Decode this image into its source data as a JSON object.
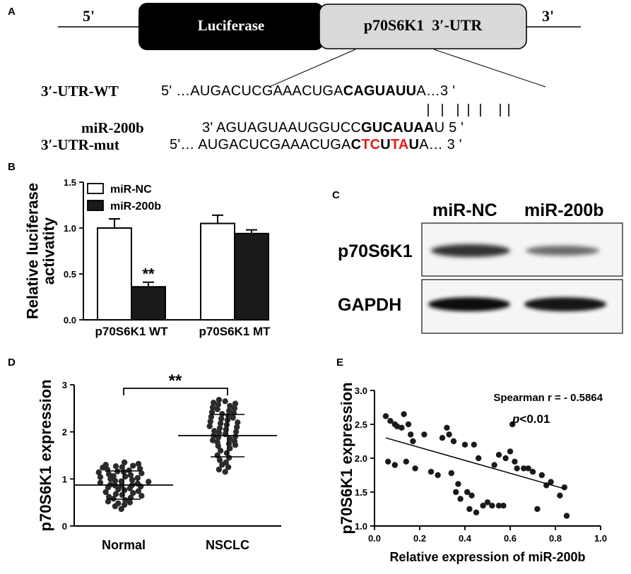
{
  "panels": {
    "a": "A",
    "b": "B",
    "c": "C",
    "d": "D",
    "e": "E"
  },
  "panel_a": {
    "five_prime": "5'",
    "three_prime": "3'",
    "box1": "Luciferase",
    "box2": "p70S6K1  3′-UTR",
    "wt": {
      "label": "3′-UTR-WT",
      "p5": "5'",
      "pre": "…AUGACUCGAAACUGA",
      "bold": "CAGUAUU",
      "post": "A…3 '"
    },
    "mir": {
      "label": "miR-200b",
      "p3": "3'",
      "pre": "AGUAGUAAUGGUCC",
      "bold": "GUCAUAA",
      "post": "U 5 '"
    },
    "mut": {
      "label": "3′-UTR-mut",
      "p5": "5'",
      "pre": "… AUGACUCGAAACUGA",
      "s1": "C",
      "r1": "TC",
      "s2": "U",
      "r2": "TA",
      "s3": "U",
      "post": "A… 3 '"
    }
  },
  "chart_data": [
    {
      "panel": "B",
      "type": "bar",
      "ylabel": "Relative luciferase activatity",
      "ylim": [
        0,
        1.5
      ],
      "yticks": [
        "0.0",
        "0.5",
        "1.0",
        "1.5"
      ],
      "categories": [
        "p70S6K1 WT",
        "p70S6K1 MT"
      ],
      "series": [
        {
          "name": "miR-NC",
          "values": [
            1.0,
            1.05
          ],
          "errors": [
            0.1,
            0.09
          ],
          "color": "#ffffff"
        },
        {
          "name": "miR-200b",
          "values": [
            0.36,
            0.94
          ],
          "errors": [
            0.05,
            0.04
          ],
          "color": "#1a1a1a"
        }
      ],
      "annotations": [
        "**"
      ],
      "legend": "top-left"
    },
    {
      "panel": "D",
      "type": "scatter",
      "ylabel": "p70S6K1 expression",
      "ylim": [
        0,
        3
      ],
      "yticks": [
        "0",
        "1",
        "2",
        "3"
      ],
      "categories": [
        "Normal",
        "NSCLC"
      ],
      "means": [
        0.87,
        1.92
      ],
      "sds": [
        0.3,
        0.45
      ],
      "annotations": [
        "**"
      ],
      "groups": [
        [
          0.36,
          0.42,
          0.45,
          0.48,
          0.5,
          0.52,
          0.55,
          0.58,
          0.6,
          0.62,
          0.64,
          0.66,
          0.68,
          0.7,
          0.72,
          0.74,
          0.76,
          0.78,
          0.8,
          0.82,
          0.84,
          0.85,
          0.86,
          0.87,
          0.88,
          0.9,
          0.92,
          0.94,
          0.95,
          0.96,
          0.98,
          1.0,
          1.02,
          1.04,
          1.05,
          1.06,
          1.08,
          1.1,
          1.12,
          1.14,
          1.15,
          1.16,
          1.18,
          1.2,
          1.22,
          1.24,
          1.25,
          1.27,
          1.28,
          1.3,
          1.32,
          1.35
        ],
        [
          1.15,
          1.2,
          1.25,
          1.3,
          1.35,
          1.4,
          1.45,
          1.5,
          1.55,
          1.6,
          1.65,
          1.7,
          1.72,
          1.75,
          1.78,
          1.8,
          1.82,
          1.85,
          1.88,
          1.9,
          1.92,
          1.95,
          1.98,
          2.0,
          2.02,
          2.05,
          2.08,
          2.1,
          2.12,
          2.15,
          2.18,
          2.2,
          2.22,
          2.25,
          2.28,
          2.3,
          2.32,
          2.35,
          2.38,
          2.4,
          2.42,
          2.45,
          2.48,
          2.5,
          2.52,
          2.55,
          2.58,
          2.6,
          2.62,
          2.65,
          2.68
        ]
      ]
    },
    {
      "panel": "E",
      "type": "scatter",
      "xlabel": "Relative expression of miR-200b",
      "ylabel": "p70S6K1 expression",
      "xlim": [
        0,
        1.0
      ],
      "ylim": [
        1.0,
        3.0
      ],
      "xticks": [
        "0.0",
        "0.2",
        "0.4",
        "0.6",
        "0.8",
        "1.0"
      ],
      "yticks": [
        "1.0",
        "1.5",
        "2.0",
        "2.5",
        "3.0"
      ],
      "annotation_text": "Spearman r = - 0.5864",
      "p_value": {
        "italic": "p",
        "rest": "<0.01"
      },
      "fit_line": {
        "x": [
          0.05,
          0.84
        ],
        "y": [
          2.3,
          1.55
        ]
      },
      "points": [
        [
          0.05,
          2.62
        ],
        [
          0.07,
          2.55
        ],
        [
          0.09,
          2.5
        ],
        [
          0.1,
          2.47
        ],
        [
          0.12,
          2.45
        ],
        [
          0.13,
          2.65
        ],
        [
          0.15,
          2.5
        ],
        [
          0.16,
          2.35
        ],
        [
          0.17,
          2.25
        ],
        [
          0.06,
          1.95
        ],
        [
          0.09,
          1.9
        ],
        [
          0.14,
          1.95
        ],
        [
          0.18,
          1.85
        ],
        [
          0.22,
          2.35
        ],
        [
          0.25,
          1.8
        ],
        [
          0.28,
          1.75
        ],
        [
          0.3,
          2.3
        ],
        [
          0.32,
          2.45
        ],
        [
          0.33,
          2.35
        ],
        [
          0.35,
          2.25
        ],
        [
          0.34,
          1.78
        ],
        [
          0.36,
          1.5
        ],
        [
          0.37,
          1.62
        ],
        [
          0.38,
          1.4
        ],
        [
          0.4,
          2.2
        ],
        [
          0.41,
          1.5
        ],
        [
          0.42,
          1.25
        ],
        [
          0.43,
          1.45
        ],
        [
          0.44,
          2.2
        ],
        [
          0.45,
          1.2
        ],
        [
          0.46,
          2.0
        ],
        [
          0.48,
          1.3
        ],
        [
          0.5,
          1.35
        ],
        [
          0.52,
          1.3
        ],
        [
          0.55,
          1.3
        ],
        [
          0.57,
          1.3
        ],
        [
          0.53,
          1.9
        ],
        [
          0.55,
          2.05
        ],
        [
          0.58,
          2.0
        ],
        [
          0.6,
          2.1
        ],
        [
          0.61,
          2.5
        ],
        [
          0.62,
          1.95
        ],
        [
          0.63,
          1.85
        ],
        [
          0.66,
          1.85
        ],
        [
          0.68,
          1.85
        ],
        [
          0.7,
          1.8
        ],
        [
          0.72,
          1.25
        ],
        [
          0.74,
          1.75
        ],
        [
          0.76,
          1.6
        ],
        [
          0.78,
          1.65
        ],
        [
          0.82,
          1.45
        ],
        [
          0.84,
          1.57
        ],
        [
          0.85,
          1.15
        ]
      ]
    }
  ],
  "panel_c": {
    "col1": "miR-NC",
    "col2": "miR-200b",
    "row1": "p70S6K1",
    "row2": "GAPDH"
  }
}
